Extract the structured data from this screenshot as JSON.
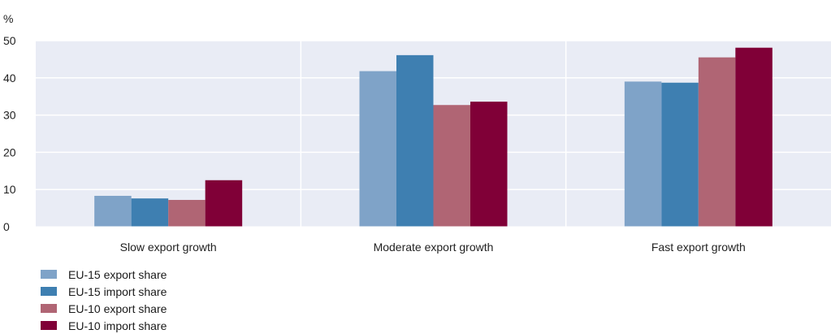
{
  "chart_data": {
    "type": "bar",
    "unit_label": "%",
    "categories": [
      "Slow export growth",
      "Moderate export growth",
      "Fast export growth"
    ],
    "series": [
      {
        "name": "EU-15 export share",
        "color": "#7fa3c8",
        "values": [
          8.3,
          41.8,
          39.0
        ]
      },
      {
        "name": "EU-15 import share",
        "color": "#3e7fb1",
        "values": [
          7.6,
          46.1,
          38.7
        ]
      },
      {
        "name": "EU-10 export share",
        "color": "#b06574",
        "values": [
          7.2,
          32.7,
          45.5
        ]
      },
      {
        "name": "EU-10 import share",
        "color": "#800037",
        "values": [
          12.5,
          33.6,
          48.1
        ]
      }
    ],
    "ylim": [
      0,
      50
    ],
    "yticks": [
      0,
      10,
      20,
      30,
      40,
      50
    ],
    "grid": true,
    "legend_position": "bottom-left",
    "plot_background": "#e9ecf5"
  }
}
